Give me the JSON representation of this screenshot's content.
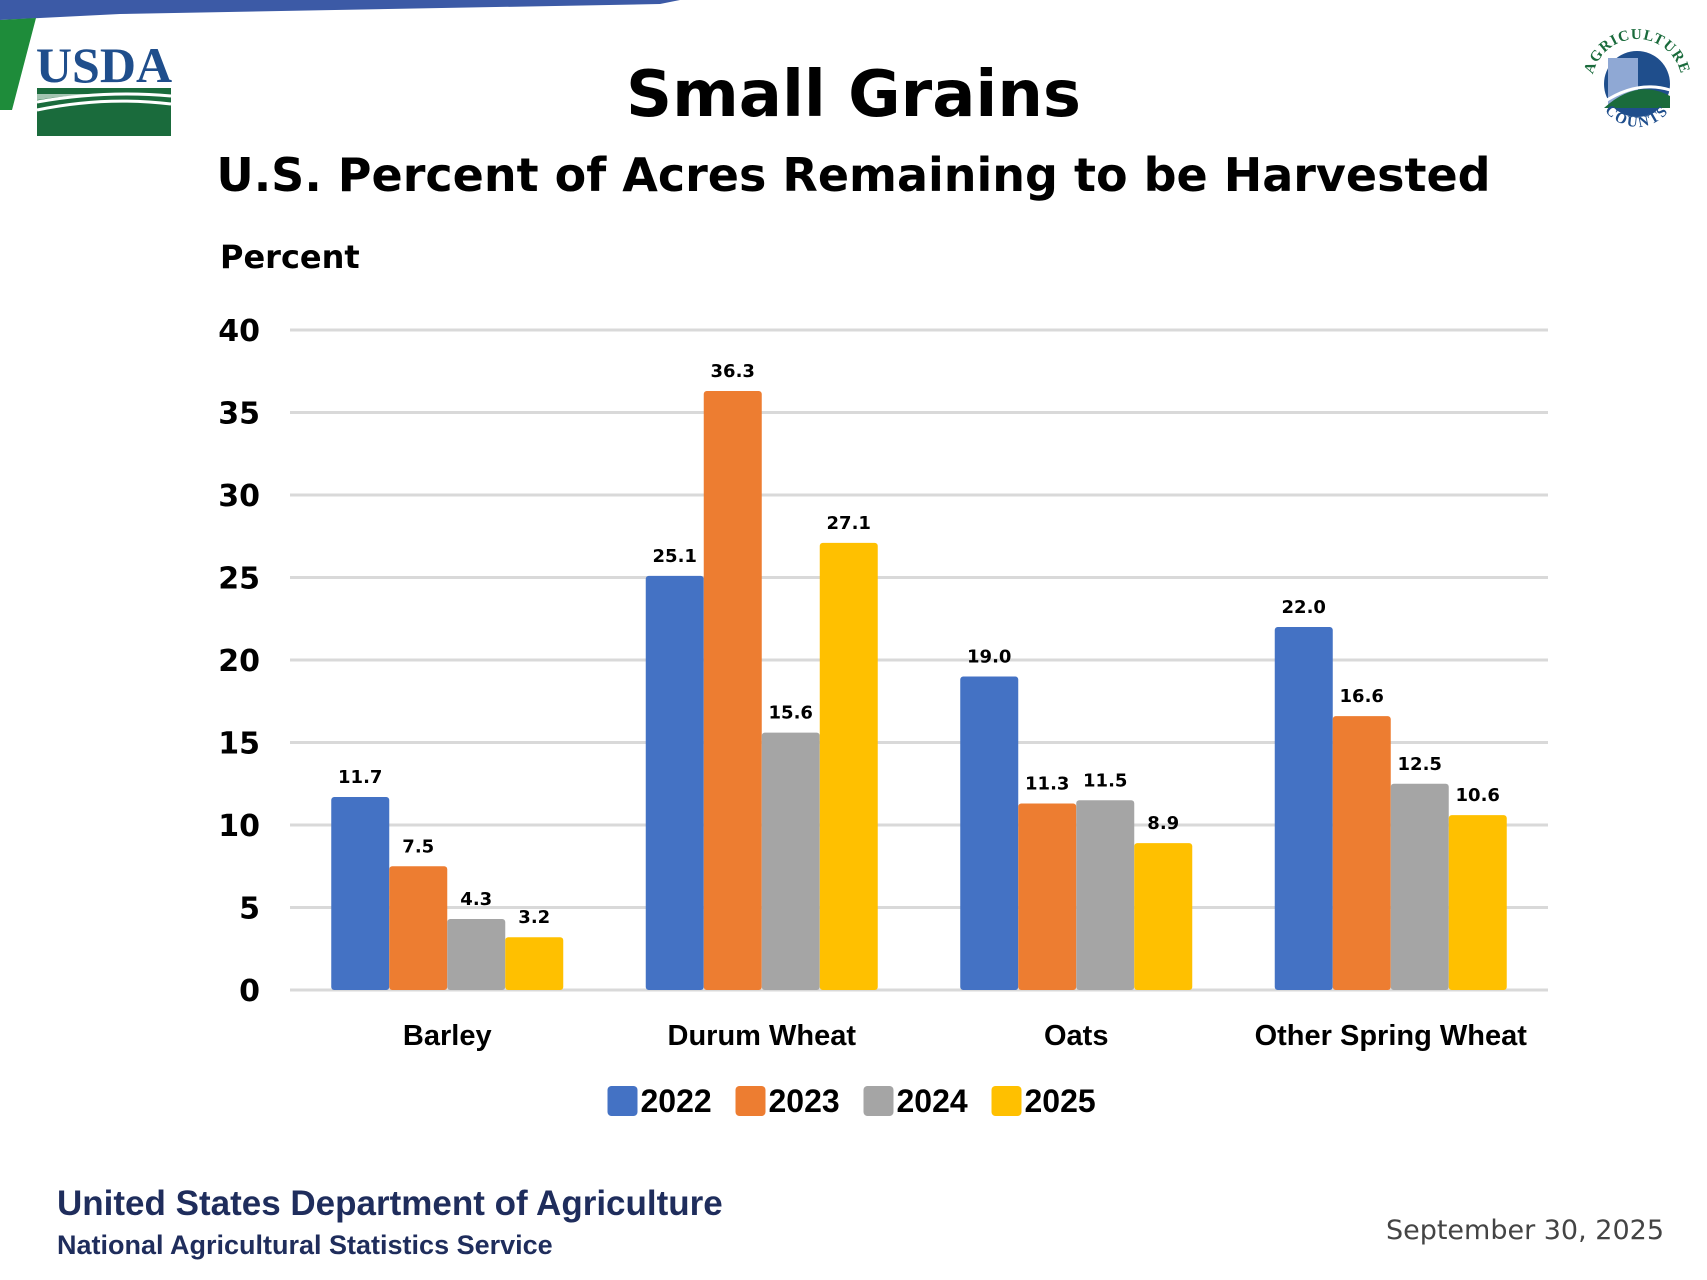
{
  "header": {
    "logo_left": "USDA",
    "logo_right_top": "AGRICULTURE",
    "logo_right_bottom": "COUNTS",
    "title": "Small Grains",
    "subtitle": "U.S. Percent of Acres Remaining to be Harvested"
  },
  "footer": {
    "org_line1": "United States Department of Agriculture",
    "org_line2": "National Agricultural Statistics Service",
    "date": "September 30, 2025"
  },
  "chart_data": {
    "type": "bar",
    "title": "Small Grains",
    "subtitle": "U.S. Percent of Acres Remaining to be Harvested",
    "xlabel": "",
    "ylabel": "Percent",
    "ylim": [
      0,
      40
    ],
    "yticks": [
      0,
      5,
      10,
      15,
      20,
      25,
      30,
      35,
      40
    ],
    "grid": true,
    "legend_position": "bottom",
    "categories": [
      "Barley",
      "Durum Wheat",
      "Oats",
      "Other Spring Wheat"
    ],
    "series": [
      {
        "name": "2022",
        "color": "#4472c4",
        "values": [
          11.7,
          25.1,
          19.0,
          22.0
        ]
      },
      {
        "name": "2023",
        "color": "#ed7d31",
        "values": [
          7.5,
          36.3,
          11.3,
          16.6
        ]
      },
      {
        "name": "2024",
        "color": "#a5a5a5",
        "values": [
          4.3,
          15.6,
          11.5,
          12.5
        ]
      },
      {
        "name": "2025",
        "color": "#ffc000",
        "values": [
          3.2,
          27.1,
          8.9,
          10.6
        ]
      }
    ]
  }
}
